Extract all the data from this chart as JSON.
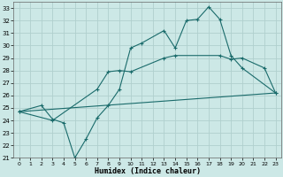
{
  "xlabel": "Humidex (Indice chaleur)",
  "background_color": "#cce8e6",
  "grid_color": "#b0d0ce",
  "line_color": "#1a6b6b",
  "xlim": [
    -0.5,
    23.5
  ],
  "ylim": [
    21,
    33.5
  ],
  "xticks": [
    0,
    1,
    2,
    3,
    4,
    5,
    6,
    7,
    8,
    9,
    10,
    11,
    12,
    13,
    14,
    15,
    16,
    17,
    18,
    19,
    20,
    21,
    22,
    23
  ],
  "yticks": [
    21,
    22,
    23,
    24,
    25,
    26,
    27,
    28,
    29,
    30,
    31,
    32,
    33
  ],
  "line1_x": [
    0,
    2,
    3,
    4,
    5,
    6,
    7,
    8,
    9,
    10,
    11,
    13,
    14,
    15,
    16,
    17,
    18,
    19,
    20,
    23
  ],
  "line1_y": [
    24.7,
    25.2,
    24.1,
    23.8,
    21.0,
    22.5,
    24.2,
    25.2,
    26.5,
    29.8,
    30.2,
    31.2,
    29.8,
    32.0,
    32.1,
    33.1,
    32.1,
    29.2,
    28.2,
    26.2
  ],
  "line2_x": [
    0,
    23
  ],
  "line2_y": [
    24.7,
    26.2
  ],
  "line3_x": [
    0,
    3,
    7,
    8,
    9,
    10,
    13,
    14,
    18,
    19,
    20,
    22,
    23
  ],
  "line3_y": [
    24.7,
    24.0,
    26.5,
    27.9,
    28.0,
    27.9,
    29.0,
    29.2,
    29.2,
    28.9,
    29.0,
    28.2,
    26.2
  ]
}
